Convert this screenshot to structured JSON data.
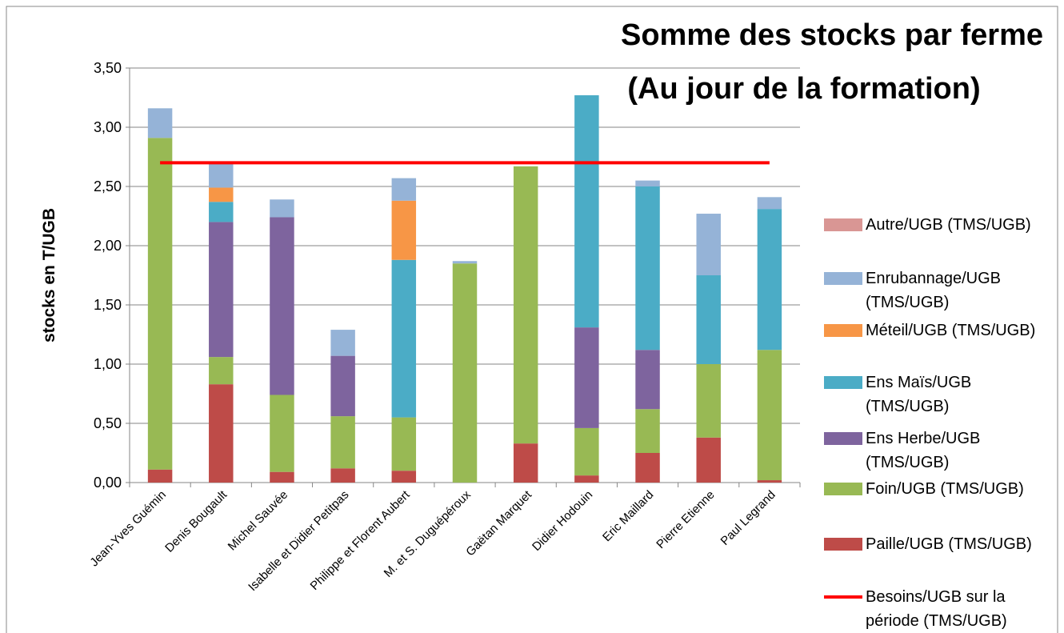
{
  "chart_data": {
    "type": "bar",
    "stacked": true,
    "title": "Somme des stocks par ferme",
    "subtitle": "(Au jour de la formation)",
    "y_label": "stocks en T/UGB",
    "categories": [
      "Jean-Yves Guémin",
      "Denis Bougault",
      "Michel Sauvée",
      "Isabelle et Didier Petitpas",
      "Philippe et Florent Aubert",
      "M. et S. Duguépéroux",
      "Gaëtan Marquet",
      "Didier Hodouin",
      "Eric Maillard",
      "Pierre Etienne",
      "Paul Legrand"
    ],
    "series": [
      {
        "name": "Paille/UGB (TMS/UGB)",
        "color": "#be4b48",
        "values": [
          0.11,
          0.83,
          0.09,
          0.12,
          0.1,
          0,
          0.33,
          0.06,
          0.25,
          0.38,
          0.02
        ]
      },
      {
        "name": "Foin/UGB (TMS/UGB)",
        "color": "#98b954",
        "values": [
          2.8,
          0.23,
          0.65,
          0.44,
          0.45,
          1.85,
          2.34,
          0.4,
          0.37,
          0.62,
          1.1
        ]
      },
      {
        "name": "Ens Herbe/UGB (TMS/UGB)",
        "color": "#7e649e",
        "values": [
          0,
          1.14,
          1.5,
          0.51,
          0,
          0,
          0,
          0.85,
          0.5,
          0,
          0
        ]
      },
      {
        "name": "Ens Maïs/UGB (TMS/UGB)",
        "color": "#4bacc6",
        "values": [
          0,
          0.17,
          0,
          0,
          1.33,
          0,
          0,
          1.96,
          1.38,
          0.75,
          1.19
        ]
      },
      {
        "name": "Méteil/UGB (TMS/UGB)",
        "color": "#f79646",
        "values": [
          0,
          0.12,
          0,
          0,
          0.5,
          0,
          0,
          0,
          0,
          0,
          0
        ]
      },
      {
        "name": "Enrubannage/UGB (TMS/UGB)",
        "color": "#95b3d7",
        "values": [
          0.25,
          0.2,
          0.15,
          0.22,
          0.19,
          0.02,
          0,
          0,
          0.05,
          0.52,
          0.1
        ]
      },
      {
        "name": "Autre/UGB (TMS/UGB)",
        "color": "#d99694",
        "values": [
          0,
          0,
          0,
          0,
          0,
          0,
          0,
          0,
          0,
          0,
          0
        ]
      },
      {
        "name": "Besoins/UGB sur la période (TMS/UGB)",
        "color": "#ff0000",
        "type": "line",
        "values": [
          2.7,
          2.7,
          2.7,
          2.7,
          2.7,
          2.7,
          2.7,
          2.7,
          2.7,
          2.7,
          2.7
        ]
      }
    ],
    "ylim": [
      0,
      3.5
    ],
    "yticks": [
      {
        "value": 0,
        "label": "0,00"
      },
      {
        "value": 0.5,
        "label": "0,50"
      },
      {
        "value": 1,
        "label": "1,00"
      },
      {
        "value": 1.5,
        "label": "1,50"
      },
      {
        "value": 2,
        "label": "2,00"
      },
      {
        "value": 2.5,
        "label": "2,50"
      },
      {
        "value": 3,
        "label": "3,00"
      },
      {
        "value": 3.5,
        "label": "3,50"
      }
    ],
    "grid": true
  }
}
